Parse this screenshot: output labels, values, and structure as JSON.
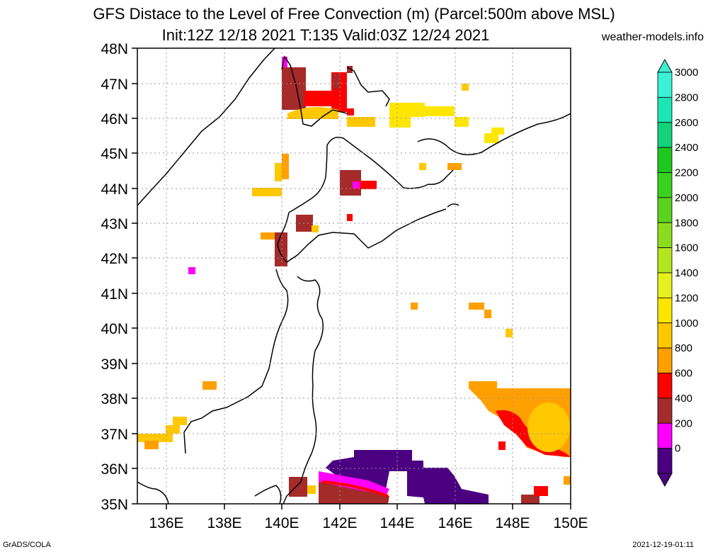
{
  "title": {
    "line1": "GFS Distace to the Level of Free Convection (m) (Parcel:500m above MSL)",
    "line2": "Init:12Z 12/18 2021 T:135 Valid:03Z 12/24 2021"
  },
  "source": "weather-models.info",
  "credit": "GrADS/COLA",
  "timestamp": "2021-12-19-01:11",
  "map": {
    "lat_labels": [
      "48N",
      "47N",
      "46N",
      "45N",
      "44N",
      "43N",
      "42N",
      "41N",
      "40N",
      "39N",
      "38N",
      "37N",
      "36N",
      "35N"
    ],
    "lon_labels": [
      "136E",
      "138E",
      "140E",
      "142E",
      "144E",
      "146E",
      "148E",
      "150E"
    ],
    "lat_range": [
      35,
      48
    ],
    "lon_range": [
      135,
      150
    ],
    "grid": true
  },
  "colorbar": {
    "labels": [
      "3000",
      "2800",
      "2600",
      "2400",
      "2200",
      "2000",
      "1800",
      "1600",
      "1400",
      "1200",
      "1000",
      "800",
      "600",
      "400",
      "200",
      "0"
    ],
    "colors": [
      "#3cf0d6",
      "#1ce6b4",
      "#13d27c",
      "#1ec81e",
      "#37d21e",
      "#5ad21e",
      "#8cdc1e",
      "#b4e61e",
      "#e6f01e",
      "#ffe600",
      "#ffc800",
      "#ffa000",
      "#ff0000",
      "#a52a2a",
      "#ff00ff",
      "#4b0082"
    ]
  },
  "legend_colors": {
    "purple": "#4b0082",
    "magenta": "#ff00ff",
    "brown": "#a52a2a",
    "red": "#ff0000",
    "orange": "#ffa000",
    "gold": "#ffc800",
    "yellow": "#ffe600"
  }
}
